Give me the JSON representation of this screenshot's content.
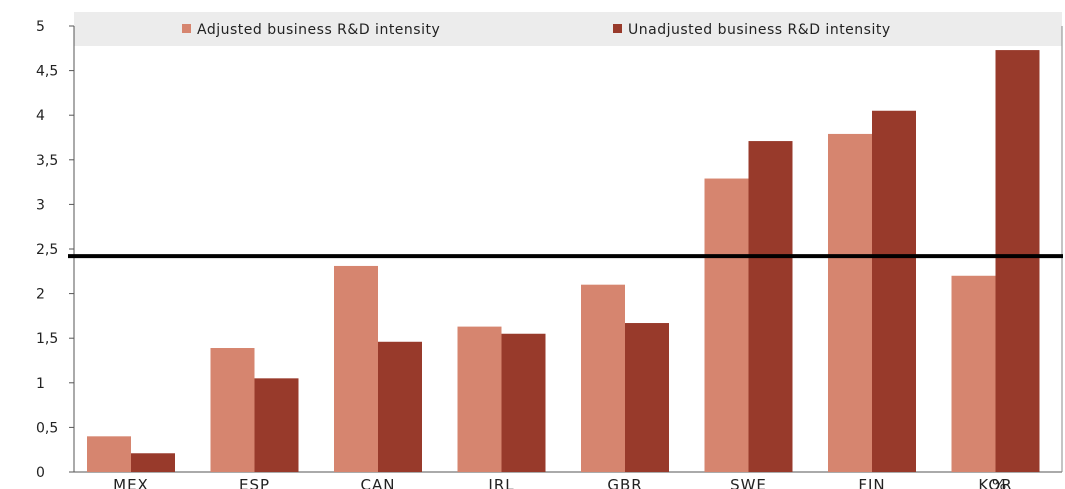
{
  "chart_data": {
    "type": "bar",
    "categories": [
      "MEX",
      "ESP",
      "CAN",
      "IRL",
      "GBR",
      "SWE",
      "FIN",
      "KOR"
    ],
    "series": [
      {
        "name": "Adjusted business R&D intensity",
        "color": "#d6856f",
        "values": [
          0.4,
          1.39,
          2.31,
          1.63,
          2.1,
          3.29,
          3.79,
          2.2
        ]
      },
      {
        "name": "Unadjusted business R&D intensity",
        "color": "#983a2b",
        "values": [
          0.21,
          1.05,
          1.46,
          1.55,
          1.67,
          3.71,
          4.05,
          4.73
        ]
      }
    ],
    "ylim": [
      0,
      5
    ],
    "yticks": [
      0,
      0.5,
      1,
      1.5,
      2,
      2.5,
      3,
      3.5,
      4,
      4.5,
      5
    ],
    "ytick_labels": [
      "0",
      "0,5",
      "1",
      "1,5",
      "2",
      "2,5",
      "3",
      "3,5",
      "4",
      "4,5",
      "5"
    ],
    "reference_line": {
      "value": 2.42,
      "color": "#000000"
    },
    "trailing_text": "%",
    "legend_position": "top",
    "xlabel": "",
    "ylabel": ""
  }
}
